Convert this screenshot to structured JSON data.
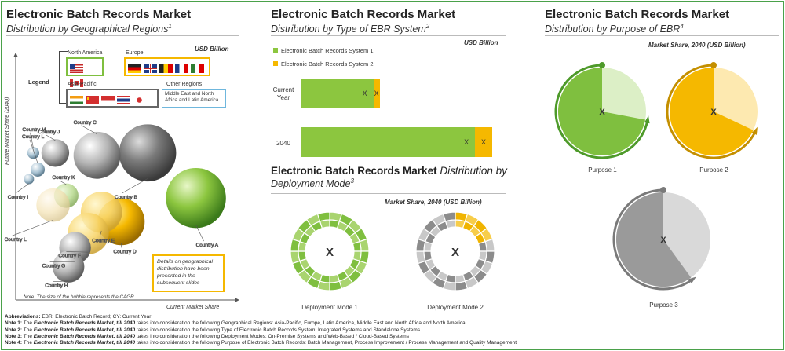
{
  "panel1": {
    "title": "Electronic Batch Records Market",
    "subtitle": "Distribution by Geographical Regions",
    "sup": "1",
    "unit": "USD Billion",
    "legend_label": "Legend",
    "regions": {
      "na": "North America",
      "eu": "Europe",
      "ap": "Asia-Pacific",
      "other": "Other Regions",
      "other_text": "Middle East and North Africa and Latin America"
    },
    "ylabel": "Future Market Share  (2040)",
    "xlabel": "Current Market Share",
    "note": "Note: The size of the bubble represents the CAGR",
    "callout": "Details on geographical distribution have been presented in the subsequent slides"
  },
  "panel2": {
    "title": "Electronic Batch Records Market",
    "subtitle": "Distribution by Type of EBR System",
    "sup": "2",
    "unit": "USD Billion",
    "legend": [
      "Electronic Batch Records System 1",
      "Electronic Batch Records System 2"
    ],
    "rows": [
      {
        "label": "Current Year",
        "val1": "X",
        "val2": "X"
      },
      {
        "label": "2040",
        "val1": "X",
        "val2": "X"
      }
    ]
  },
  "panel3": {
    "title_bold": "Electronic Batch Records Market",
    "title_rest": "Distribution by",
    "title_line2": "Deployment Mode",
    "sup": "3",
    "unit": "Market Share, 2040 (USD Billion)",
    "modes": [
      {
        "label": "Deployment Mode 1",
        "center": "X"
      },
      {
        "label": "Deployment Mode 2",
        "center": "X"
      }
    ]
  },
  "panel4": {
    "title": "Electronic Batch Records Market",
    "subtitle": "Distribution by Purpose of EBR",
    "sup": "4",
    "unit": "Market Share, 2040 (USD Billion)",
    "purposes": [
      {
        "label": "Purpose 1",
        "center": "X"
      },
      {
        "label": "Purpose 2",
        "center": "X"
      },
      {
        "label": "Purpose 3",
        "center": "X"
      }
    ]
  },
  "notes": {
    "abbr_label": "Abbreviations:",
    "abbr": "EBR: Electronic Batch Record; CY: Current Year",
    "n1_label": "Note 1:",
    "n1_mid": "The",
    "n1_ital": "Electronic Batch Records Market, till 2040",
    "n1_rest": "takes into consideration the following Geographical Regions: Asia-Pacific, Europe, Latin America, Middle East and North Africa and North America",
    "n2_label": "Note 2:",
    "n2_mid": "The",
    "n2_ital": "Electronic Batch Records Market, till 2040",
    "n2_rest": "takes into consideration the following Type of Electronic Batch Records System: Integrated Systems and Standalone Systems",
    "n3_label": "Note 3:",
    "n3_mid": "The",
    "n3_ital": "Electronic Batch Records Market, till 2040",
    "n3_rest": "takes into consideration the following Deployment Modes: On-Premise Systems and Web-Based / Cloud-Based Systems",
    "n4_label": "Note 4:",
    "n4_mid": "The",
    "n4_ital": "Electronic Batch Records Market, till 2040",
    "n4_rest": "takes into consideration the following Purpose of Electronic Batch Records: Batch Management, Process Improvement / Process Management and Quality Management"
  },
  "chart_data": [
    {
      "type": "scatter",
      "title": "Electronic Batch Records Market",
      "subtitle": "Distribution by Geographical Regions",
      "xlabel": "Current Market Share",
      "ylabel": "Future Market Share  (2040)",
      "points": [
        {
          "label": "Country A",
          "x": 0.82,
          "y": 0.43,
          "size": 0.95,
          "color": "green"
        },
        {
          "label": "Country B",
          "x": 0.6,
          "y": 0.62,
          "size": 0.9,
          "color": "dark-gray"
        },
        {
          "label": "Country C",
          "x": 0.37,
          "y": 0.61,
          "size": 0.72,
          "color": "silver"
        },
        {
          "label": "Country D",
          "x": 0.48,
          "y": 0.33,
          "size": 0.72,
          "color": "gold"
        },
        {
          "label": "Country E",
          "x": 0.39,
          "y": 0.37,
          "size": 0.62,
          "color": "gold-light"
        },
        {
          "label": "Country F",
          "x": 0.33,
          "y": 0.28,
          "size": 0.62,
          "color": "gold-light"
        },
        {
          "label": "Country G",
          "x": 0.27,
          "y": 0.22,
          "size": 0.45,
          "color": "silver"
        },
        {
          "label": "Country H",
          "x": 0.24,
          "y": 0.14,
          "size": 0.45,
          "color": "silver"
        },
        {
          "label": "Country J",
          "x": 0.18,
          "y": 0.62,
          "size": 0.38,
          "color": "silver"
        },
        {
          "label": "Country K",
          "x": 0.23,
          "y": 0.44,
          "size": 0.32,
          "color": "green-light"
        },
        {
          "label": "Country L",
          "x": 0.17,
          "y": 0.4,
          "size": 0.48,
          "color": "gold-faded"
        },
        {
          "label": "Country M",
          "x": 0.08,
          "y": 0.62,
          "size": 0.1,
          "color": "blue-gray"
        },
        {
          "label": "Country L",
          "x": 0.1,
          "y": 0.55,
          "size": 0.14,
          "color": "blue-gray"
        },
        {
          "label": "Country I",
          "x": 0.06,
          "y": 0.51,
          "size": 0.07,
          "color": "blue-gray"
        }
      ]
    },
    {
      "type": "bar",
      "title": "Electronic Batch Records Market",
      "subtitle": "Distribution by Type of EBR System",
      "orientation": "horizontal",
      "stacked": true,
      "categories": [
        "Current Year",
        "2040"
      ],
      "series": [
        {
          "name": "Electronic Batch Records System 1",
          "values": [
            0.92,
            2.22
          ],
          "color": "#8cc63f"
        },
        {
          "name": "Electronic Batch Records System 2",
          "values": [
            0.08,
            0.22
          ],
          "color": "#f5b800"
        }
      ],
      "unit": "USD Billion"
    },
    {
      "type": "pie",
      "title": "Deployment Mode 1",
      "segments": 20,
      "colored_segments": 20,
      "palette": [
        "#7fbf3f",
        "#a9d46f"
      ]
    },
    {
      "type": "pie",
      "title": "Deployment Mode 2",
      "segments": 20,
      "colored_segments": 4,
      "palette": [
        "#f0b400",
        "#8c8c8c",
        "#c8c8c8"
      ]
    },
    {
      "type": "pie",
      "title": "Purpose 1",
      "share": 0.72,
      "color": "#7fbf3f",
      "background": "#dcefc6"
    },
    {
      "type": "pie",
      "title": "Purpose 2",
      "share": 0.68,
      "color": "#f5b800",
      "background": "#fde9b0"
    },
    {
      "type": "pie",
      "title": "Purpose 3",
      "share": 0.6,
      "color": "#9a9a9a",
      "background": "#d9d9d9"
    }
  ]
}
